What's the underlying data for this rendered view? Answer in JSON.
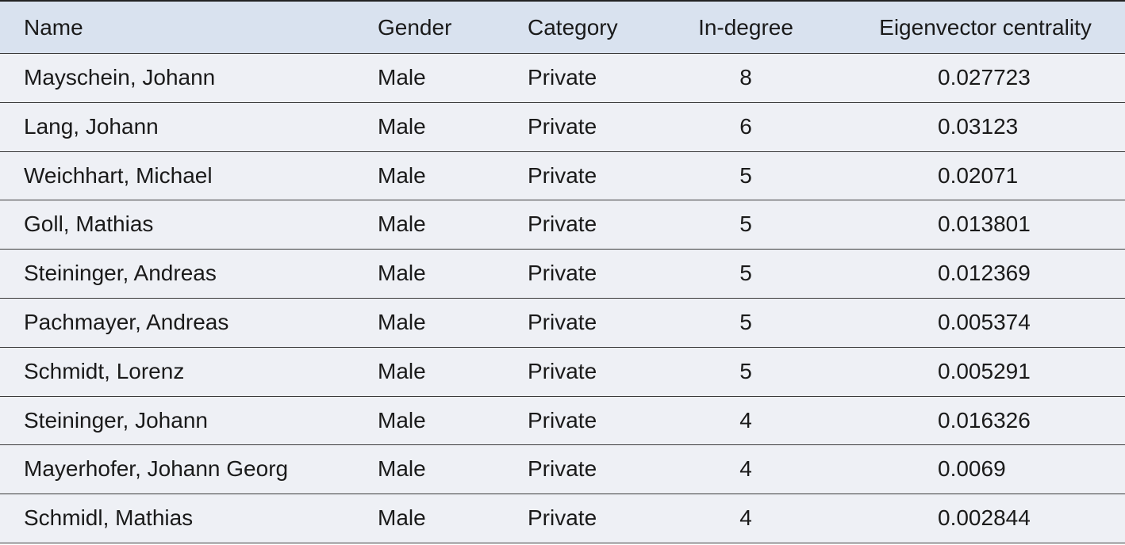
{
  "table": {
    "headers": [
      "Name",
      "Gender",
      "Category",
      "In-degree",
      "Eigenvector centrality"
    ],
    "rows": [
      [
        "Mayschein, Johann",
        "Male",
        "Private",
        8,
        0.027723
      ],
      [
        "Lang, Johann",
        "Male",
        "Private",
        6,
        0.03123
      ],
      [
        "Weichhart, Michael",
        "Male",
        "Private",
        5,
        0.02071
      ],
      [
        "Goll, Mathias",
        "Male",
        "Private",
        5,
        0.013801
      ],
      [
        "Steininger, Andreas",
        "Male",
        "Private",
        5,
        0.012369
      ],
      [
        "Pachmayer, Andreas",
        "Male",
        "Private",
        5,
        0.005374
      ],
      [
        "Schmidt, Lorenz",
        "Male",
        "Private",
        5,
        0.005291
      ],
      [
        "Steininger, Johann",
        "Male",
        "Private",
        4,
        0.016326
      ],
      [
        "Mayerhofer, Johann Georg",
        "Male",
        "Private",
        4,
        0.0069
      ],
      [
        "Schmidl, Mathias",
        "Male",
        "Private",
        4,
        0.002844
      ]
    ]
  }
}
